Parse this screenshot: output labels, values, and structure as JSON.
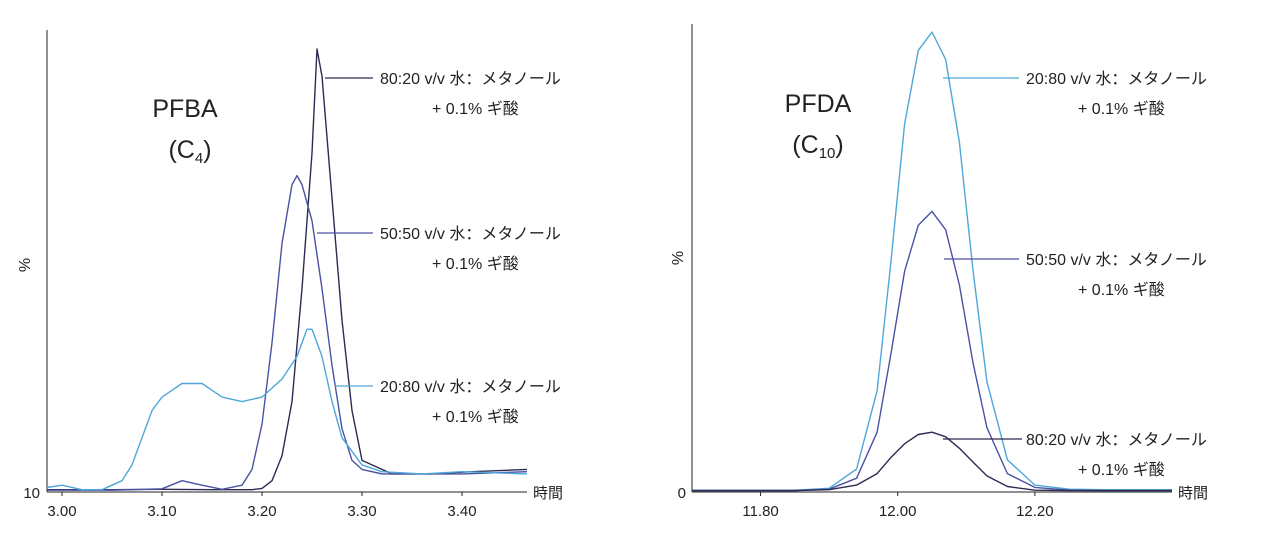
{
  "chart_data": [
    {
      "type": "line",
      "title": "PFBA",
      "subtitle_main": "(C",
      "subtitle_sub": "4",
      "subtitle_end": ")",
      "ylabel": "%",
      "xlabel": "時間",
      "y_tick_label": "10",
      "xlim": [
        2.985,
        3.465
      ],
      "ylim": [
        0,
        100
      ],
      "x_ticks": [
        "3.00",
        "3.10",
        "3.20",
        "3.30",
        "3.40"
      ],
      "x_tick_values": [
        3.0,
        3.1,
        3.2,
        3.3,
        3.4
      ],
      "series": [
        {
          "name": "80:20 v/v 水：メタノール + 0.1% ギ酸",
          "color": "#2e2a52",
          "x": [
            2.985,
            3.05,
            3.1,
            3.15,
            3.19,
            3.2,
            3.21,
            3.22,
            3.23,
            3.24,
            3.25,
            3.255,
            3.26,
            3.27,
            3.28,
            3.29,
            3.3,
            3.33,
            3.37,
            3.41,
            3.465
          ],
          "y": [
            0.5,
            0.5,
            0.6,
            0.5,
            0.5,
            0.8,
            2.5,
            8,
            20,
            45,
            75,
            98,
            92,
            65,
            38,
            18,
            7,
            4,
            4,
            4.5,
            5
          ]
        },
        {
          "name": "50:50 v/v 水：メタノール + 0.1% ギ酸",
          "color": "#4a52a3",
          "x": [
            2.985,
            3.05,
            3.1,
            3.12,
            3.14,
            3.16,
            3.18,
            3.19,
            3.2,
            3.21,
            3.22,
            3.23,
            3.235,
            3.24,
            3.25,
            3.26,
            3.27,
            3.28,
            3.29,
            3.3,
            3.32,
            3.36,
            3.4,
            3.465
          ],
          "y": [
            0.4,
            0.4,
            0.7,
            2.5,
            1.5,
            0.6,
            1.5,
            5,
            15,
            33,
            55,
            68,
            70,
            68,
            60,
            45,
            28,
            14,
            7,
            5,
            4,
            4,
            4,
            4.5
          ]
        },
        {
          "name": "20:80 v/v 水：メタノール + 0.1% ギ酸",
          "color": "#4fa7d8",
          "x": [
            2.985,
            3.0,
            3.02,
            3.04,
            3.06,
            3.07,
            3.08,
            3.09,
            3.1,
            3.12,
            3.14,
            3.16,
            3.18,
            3.2,
            3.22,
            3.235,
            3.245,
            3.25,
            3.26,
            3.27,
            3.28,
            3.3,
            3.32,
            3.36,
            3.4,
            3.465
          ],
          "y": [
            1,
            1.5,
            0.5,
            0.5,
            2.5,
            6,
            12,
            18,
            21,
            24,
            24,
            21,
            20,
            21,
            25,
            30,
            36,
            36,
            30,
            20,
            12,
            6,
            4.5,
            4,
            4.5,
            4
          ]
        }
      ]
    },
    {
      "type": "line",
      "title": "PFDA",
      "subtitle_main": "(C",
      "subtitle_sub": "10",
      "subtitle_end": ")",
      "ylabel": "%",
      "xlabel": "時間",
      "y_tick_label": "0",
      "xlim": [
        11.7,
        12.4
      ],
      "ylim": [
        0,
        100
      ],
      "x_ticks": [
        "11.80",
        "12.00",
        "12.20"
      ],
      "x_tick_values": [
        11.8,
        12.0,
        12.2
      ],
      "series": [
        {
          "name": "20:80 v/v 水：メタノール + 0.1% ギ酸",
          "color": "#4fa7d8",
          "x": [
            11.7,
            11.85,
            11.9,
            11.94,
            11.97,
            11.99,
            12.01,
            12.03,
            12.05,
            12.07,
            12.09,
            12.11,
            12.13,
            12.16,
            12.2,
            12.25,
            12.3,
            12.4
          ],
          "y": [
            0.4,
            0.4,
            0.8,
            5,
            22,
            50,
            80,
            96,
            100,
            94,
            76,
            48,
            24,
            7,
            1.5,
            0.6,
            0.5,
            0.5
          ]
        },
        {
          "name": "50:50 v/v 水：メタノール + 0.1% ギ酸",
          "color": "#4a52a3",
          "x": [
            11.7,
            11.85,
            11.9,
            11.94,
            11.97,
            11.99,
            12.01,
            12.03,
            12.05,
            12.07,
            12.09,
            12.11,
            12.13,
            12.16,
            12.2,
            12.25,
            12.3,
            12.4
          ],
          "y": [
            0.3,
            0.3,
            0.6,
            3,
            13,
            30,
            48,
            58,
            61,
            57,
            45,
            28,
            14,
            4,
            1,
            0.4,
            0.3,
            0.3
          ]
        },
        {
          "name": "80:20 v/v 水：メタノール + 0.1% ギ酸",
          "color": "#2e2a52",
          "x": [
            11.7,
            11.85,
            11.9,
            11.94,
            11.97,
            11.99,
            12.01,
            12.03,
            12.05,
            12.07,
            12.09,
            12.11,
            12.13,
            12.16,
            12.2,
            12.25,
            12.3,
            12.4
          ],
          "y": [
            0.3,
            0.3,
            0.5,
            1.5,
            4,
            7.5,
            10.5,
            12.5,
            13,
            12,
            9.5,
            6.5,
            3.5,
            1.2,
            0.4,
            0.3,
            0.3,
            0.3
          ]
        }
      ],
      "annotations_order": [
        0,
        1,
        2
      ]
    }
  ],
  "annotation_line2": "+ 0.1% ギ酸"
}
